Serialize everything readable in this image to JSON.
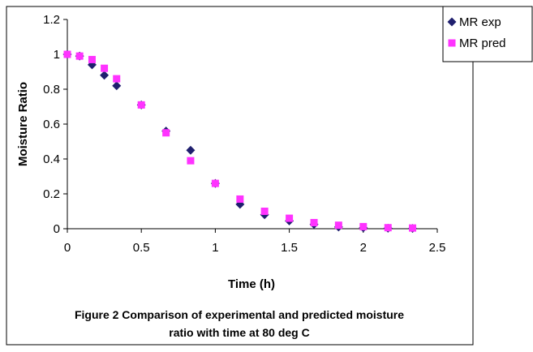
{
  "chart_data": {
    "type": "scatter",
    "title": "",
    "xlabel": "Time (h)",
    "ylabel": "Moisture Ratio",
    "xlim": [
      0,
      2.5
    ],
    "ylim": [
      0,
      1.2
    ],
    "xticks": [
      "0",
      "0.5",
      "1",
      "1.5",
      "2",
      "2.5"
    ],
    "yticks": [
      "0",
      "0.2",
      "0.4",
      "0.6",
      "0.8",
      "1",
      "1.2"
    ],
    "grid": false,
    "legend": "right",
    "series": [
      {
        "name": "MR exp",
        "marker": "diamond",
        "color": "#1f1f6e",
        "x": [
          0,
          0.083,
          0.167,
          0.25,
          0.333,
          0.5,
          0.667,
          0.833,
          1.0,
          1.167,
          1.333,
          1.5,
          1.667,
          1.833,
          2.0,
          2.167,
          2.333
        ],
        "y": [
          1.0,
          0.99,
          0.94,
          0.88,
          0.82,
          0.71,
          0.56,
          0.45,
          0.26,
          0.14,
          0.08,
          0.045,
          0.025,
          0.01,
          0.005,
          0.003,
          0.002
        ]
      },
      {
        "name": "MR pred",
        "marker": "square",
        "color": "#ff33ff",
        "x": [
          0,
          0.083,
          0.167,
          0.25,
          0.333,
          0.5,
          0.667,
          0.833,
          1.0,
          1.167,
          1.333,
          1.5,
          1.667,
          1.833,
          2.0,
          2.167,
          2.333
        ],
        "y": [
          1.0,
          0.99,
          0.97,
          0.92,
          0.86,
          0.71,
          0.55,
          0.39,
          0.26,
          0.17,
          0.1,
          0.06,
          0.035,
          0.02,
          0.012,
          0.006,
          0.004
        ]
      }
    ]
  },
  "caption": {
    "line1": "Figure 2 Comparison of experimental and predicted moisture",
    "line2": "ratio with time at 80 deg C"
  }
}
